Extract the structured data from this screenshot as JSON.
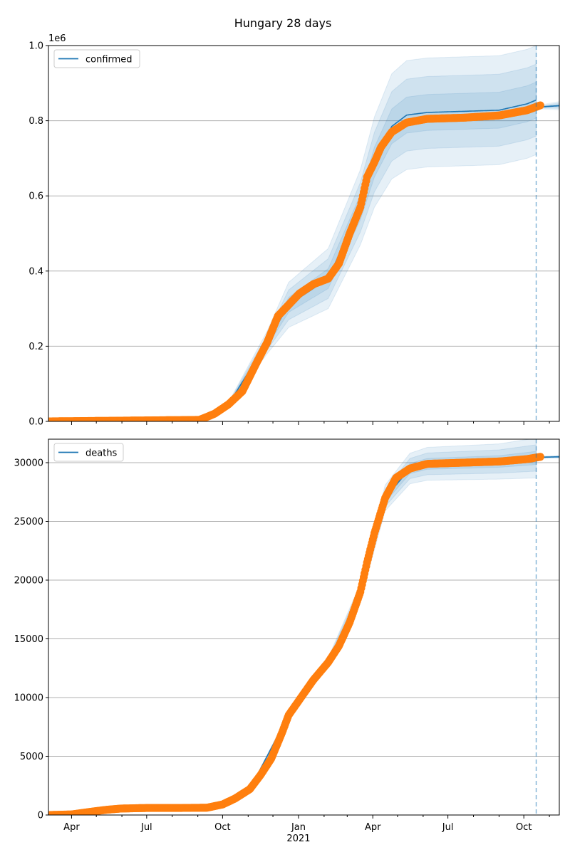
{
  "chart_data": {
    "title": "Hungary 28 days",
    "x_range": [
      "2020-03-04",
      "2021-11-13"
    ],
    "x_major_ticks": [
      {
        "date": "2020-04-01",
        "label": "Apr"
      },
      {
        "date": "2020-07-01",
        "label": "Jul"
      },
      {
        "date": "2020-10-01",
        "label": "Oct"
      },
      {
        "date": "2021-01-01",
        "label": "Jan"
      },
      {
        "date": "2021-04-01",
        "label": "Apr"
      },
      {
        "date": "2021-07-01",
        "label": "Jul"
      },
      {
        "date": "2021-10-01",
        "label": "Oct"
      }
    ],
    "x_year_label": {
      "date": "2021-01-01",
      "label": "2021"
    },
    "forecast_start": "2021-10-16",
    "colors": {
      "model": "#1f77b4",
      "observed": "#ff7f0e",
      "grid": "#b0b0b0"
    },
    "band_levels": [
      0.33,
      0.66,
      1.0
    ],
    "panels": [
      {
        "type": "line",
        "legend": "confirmed",
        "legend_position": "upper-left",
        "offset_label": "1e6",
        "ylim": [
          0,
          1.0
        ],
        "yticks": [
          0,
          0.2,
          0.4,
          0.6,
          0.8,
          1.0
        ],
        "ytick_labels": [
          "0.0",
          "0.2",
          "0.4",
          "0.6",
          "0.8",
          "1.0"
        ],
        "grid": true,
        "observed": [
          [
            "2020-03-04",
            0
          ],
          [
            "2020-09-03",
            0.004
          ],
          [
            "2020-09-21",
            0.02
          ],
          [
            "2020-10-08",
            0.045
          ],
          [
            "2020-10-25",
            0.08
          ],
          [
            "2020-11-11",
            0.155
          ],
          [
            "2020-11-24",
            0.21
          ],
          [
            "2020-12-07",
            0.28
          ],
          [
            "2020-12-20",
            0.31
          ],
          [
            "2021-01-02",
            0.34
          ],
          [
            "2021-01-19",
            0.365
          ],
          [
            "2021-02-06",
            0.38
          ],
          [
            "2021-02-19",
            0.42
          ],
          [
            "2021-03-04",
            0.5
          ],
          [
            "2021-03-17",
            0.57
          ],
          [
            "2021-03-25",
            0.65
          ],
          [
            "2021-04-03",
            0.69
          ],
          [
            "2021-04-11",
            0.73
          ],
          [
            "2021-04-24",
            0.77
          ],
          [
            "2021-05-12",
            0.795
          ],
          [
            "2021-06-06",
            0.805
          ],
          [
            "2021-07-20",
            0.808
          ],
          [
            "2021-09-01",
            0.814
          ],
          [
            "2021-10-05",
            0.828
          ],
          [
            "2021-10-21",
            0.841
          ]
        ],
        "model": [
          [
            "2020-09-03",
            0.004,
            0
          ],
          [
            "2020-10-08",
            0.045,
            0.005
          ],
          [
            "2020-11-24",
            0.21,
            0.03
          ],
          [
            "2020-12-20",
            0.31,
            0.06
          ],
          [
            "2021-02-06",
            0.38,
            0.08
          ],
          [
            "2021-03-17",
            0.57,
            0.1
          ],
          [
            "2021-04-03",
            0.69,
            0.12
          ],
          [
            "2021-04-24",
            0.785,
            0.14
          ],
          [
            "2021-05-12",
            0.815,
            0.145
          ],
          [
            "2021-06-06",
            0.822,
            0.145
          ],
          [
            "2021-07-20",
            0.825,
            0.145
          ],
          [
            "2021-09-01",
            0.828,
            0.145
          ],
          [
            "2021-10-05",
            0.845,
            0.145
          ],
          [
            "2021-10-16",
            0.855,
            0.145
          ]
        ],
        "forecast": [
          [
            "2021-10-16",
            0.836,
            0.005
          ],
          [
            "2021-11-13",
            0.84,
            0.012
          ]
        ]
      },
      {
        "type": "line",
        "legend": "deaths",
        "legend_position": "upper-left",
        "ylim": [
          0,
          32000
        ],
        "yticks": [
          0,
          5000,
          10000,
          15000,
          20000,
          25000,
          30000
        ],
        "ytick_labels": [
          "0",
          "5000",
          "10000",
          "15000",
          "20000",
          "25000",
          "30000"
        ],
        "grid": true,
        "observed": [
          [
            "2020-03-04",
            0
          ],
          [
            "2020-04-01",
            50
          ],
          [
            "2020-04-27",
            300
          ],
          [
            "2020-05-14",
            450
          ],
          [
            "2020-05-31",
            550
          ],
          [
            "2020-07-01",
            600
          ],
          [
            "2020-08-08",
            600
          ],
          [
            "2020-09-12",
            620
          ],
          [
            "2020-10-01",
            900
          ],
          [
            "2020-10-16",
            1400
          ],
          [
            "2020-11-03",
            2200
          ],
          [
            "2020-11-16",
            3400
          ],
          [
            "2020-11-29",
            4800
          ],
          [
            "2020-12-12",
            7000
          ],
          [
            "2020-12-20",
            8500
          ],
          [
            "2021-01-02",
            9800
          ],
          [
            "2021-01-19",
            11500
          ],
          [
            "2021-02-06",
            13000
          ],
          [
            "2021-02-19",
            14400
          ],
          [
            "2021-03-04",
            16400
          ],
          [
            "2021-03-17",
            19000
          ],
          [
            "2021-03-25",
            21500
          ],
          [
            "2021-04-03",
            24000
          ],
          [
            "2021-04-16",
            27000
          ],
          [
            "2021-04-29",
            28700
          ],
          [
            "2021-05-16",
            29500
          ],
          [
            "2021-06-06",
            29900
          ],
          [
            "2021-07-20",
            30000
          ],
          [
            "2021-09-01",
            30100
          ],
          [
            "2021-10-05",
            30300
          ],
          [
            "2021-10-21",
            30500
          ]
        ],
        "model": [
          [
            "2020-11-03",
            2200,
            0
          ],
          [
            "2020-12-20",
            8500,
            200
          ],
          [
            "2021-02-06",
            13000,
            400
          ],
          [
            "2021-03-17",
            19000,
            700
          ],
          [
            "2021-04-16",
            27000,
            1100
          ],
          [
            "2021-05-16",
            29500,
            1300
          ],
          [
            "2021-06-06",
            29900,
            1400
          ],
          [
            "2021-09-01",
            30100,
            1500
          ],
          [
            "2021-10-16",
            30400,
            1700
          ]
        ],
        "forecast": [
          [
            "2021-10-16",
            30450,
            100
          ],
          [
            "2021-11-13",
            30500,
            150
          ]
        ]
      }
    ]
  }
}
